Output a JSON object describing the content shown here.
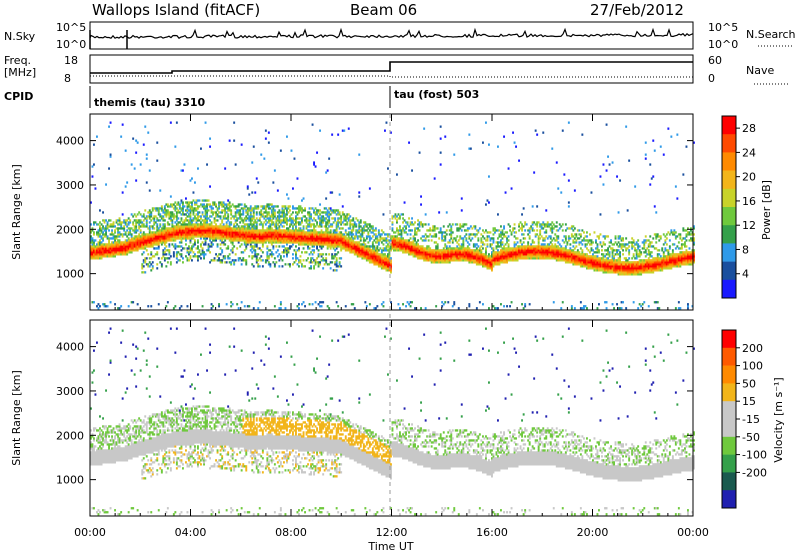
{
  "header": {
    "site": "Wallops Island (fitACF)",
    "beam": "Beam 06",
    "date": "27/Feb/2012"
  },
  "strip_panels": {
    "nsky_label": "N.Sky",
    "nsky_ticks": [
      "10^5",
      "10^0"
    ],
    "nsearch_label": "N.Search",
    "nsearch_ticks": [
      "10^5",
      "10^0"
    ],
    "freq_label": "Freq.",
    "freq_unit": "[MHz]",
    "freq_ticks": [
      "18",
      "8"
    ],
    "nave_label": "Nave",
    "nave_ticks": [
      "60",
      "0"
    ],
    "cpid_label": "CPID",
    "cpid_first": "themis (tau) 3310",
    "cpid_second": "tau (fost) 503"
  },
  "colors": {
    "power_scale": [
      "#1a1aff",
      "#1a4f9e",
      "#2f9ae8",
      "#34a04a",
      "#6fc93d",
      "#c8d32a",
      "#f2b51a",
      "#ff8a00",
      "#ff4a00",
      "#ff0000"
    ],
    "velocity_scale": [
      "#ff0000",
      "#ff5a00",
      "#ff8a00",
      "#f2b51a",
      "#c8c8c8",
      "#c8c8c8",
      "#6fc93d",
      "#34a04a",
      "#1a5a4f",
      "#2020b0"
    ],
    "ground_scatter": "#c8c8c8"
  },
  "chart_data": [
    {
      "type": "heatmap",
      "panel": "power",
      "ylabel": "Slant Range [km]",
      "xlabel": "Time UT",
      "x_ticks": [
        "00:00",
        "04:00",
        "08:00",
        "12:00",
        "16:00",
        "20:00",
        "00:00"
      ],
      "y_ticks": [
        1000,
        2000,
        3000,
        4000
      ],
      "ylim": [
        180,
        4600
      ],
      "xlim_hours": [
        0,
        24
      ],
      "colorbar_label": "Power [dB]",
      "colorbar_ticks": [
        4,
        8,
        12,
        16,
        20,
        24,
        28
      ],
      "colorbar_range": [
        0,
        30
      ]
    },
    {
      "type": "heatmap",
      "panel": "velocity",
      "ylabel": "Slant Range [km]",
      "xlabel": "Time UT",
      "x_ticks": [
        "00:00",
        "04:00",
        "08:00",
        "12:00",
        "16:00",
        "20:00",
        "00:00"
      ],
      "y_ticks": [
        1000,
        2000,
        3000,
        4000
      ],
      "ylim": [
        180,
        4600
      ],
      "xlim_hours": [
        0,
        24
      ],
      "colorbar_label": "Velocity [m s⁻¹]",
      "colorbar_ticks": [
        200,
        100,
        50,
        15,
        -15,
        -50,
        -100,
        -200
      ],
      "colorbar_range": [
        -250,
        250
      ]
    }
  ]
}
